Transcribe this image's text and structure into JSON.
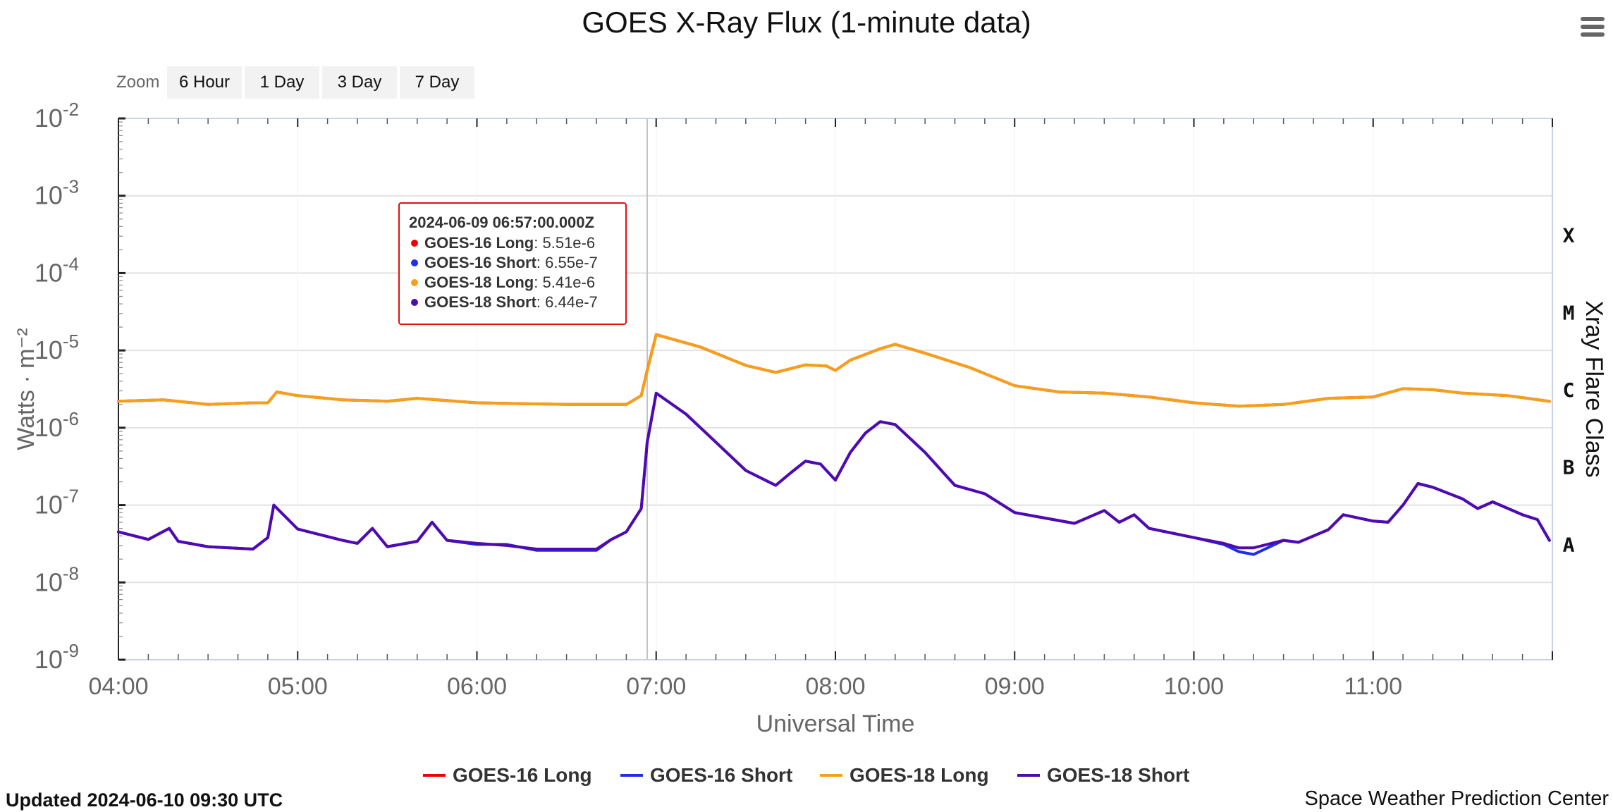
{
  "menu_icon": "hamburger-menu-icon",
  "zoom": {
    "label": "Zoom",
    "buttons": [
      "6 Hour",
      "1 Day",
      "3 Day",
      "7 Day"
    ]
  },
  "footer": {
    "updated": "Updated 2024-06-10 09:30 UTC",
    "credit": "Space Weather Prediction Center"
  },
  "tooltip": {
    "title": "2024-06-09 06:57:00.000Z",
    "rows": [
      {
        "name": "GOES-16 Long",
        "value": "5.51e-6",
        "color": "#ee0000"
      },
      {
        "name": "GOES-16 Short",
        "value": "6.55e-7",
        "color": "#1f2ee8"
      },
      {
        "name": "GOES-18 Long",
        "value": "5.41e-6",
        "color": "#f5a01a"
      },
      {
        "name": "GOES-18 Short",
        "value": "6.44e-7",
        "color": "#4f0ab0"
      }
    ]
  },
  "chart_data": {
    "type": "line",
    "title": "GOES X-Ray Flux (1-minute data)",
    "xlabel": "Universal Time",
    "ylabel": "Watts · m⁻²",
    "y2label": "Xray Flare Class",
    "y_scale": "log",
    "ylim": [
      1e-09,
      0.01
    ],
    "xlim": [
      "04:00",
      "12:00"
    ],
    "x_ticks": [
      "04:00",
      "05:00",
      "06:00",
      "07:00",
      "08:00",
      "09:00",
      "10:00",
      "11:00"
    ],
    "y_ticks": [
      {
        "base": "10",
        "exp": "-2",
        "value": 0.01
      },
      {
        "base": "10",
        "exp": "-3",
        "value": 0.001
      },
      {
        "base": "10",
        "exp": "-4",
        "value": 0.0001
      },
      {
        "base": "10",
        "exp": "-5",
        "value": 1e-05
      },
      {
        "base": "10",
        "exp": "-6",
        "value": 1e-06
      },
      {
        "base": "10",
        "exp": "-7",
        "value": 1e-07
      },
      {
        "base": "10",
        "exp": "-8",
        "value": 1e-08
      },
      {
        "base": "10",
        "exp": "-9",
        "value": 1e-09
      }
    ],
    "flare_classes": [
      {
        "label": "X",
        "value": 0.000316
      },
      {
        "label": "M",
        "value": 3.16e-05
      },
      {
        "label": "C",
        "value": 3.16e-06
      },
      {
        "label": "B",
        "value": 3.16e-07
      },
      {
        "label": "A",
        "value": 3.16e-08
      }
    ],
    "crosshair_x": "06:57",
    "grid": true,
    "legend_position": "bottom-center",
    "series": [
      {
        "name": "GOES-16 Long",
        "color": "#ee0000",
        "x": [
          "04:00",
          "04:15",
          "04:30",
          "04:45",
          "04:50",
          "04:53",
          "05:00",
          "05:15",
          "05:30",
          "05:40",
          "06:00",
          "06:30",
          "06:50",
          "06:55",
          "06:57",
          "07:00",
          "07:15",
          "07:30",
          "07:40",
          "07:50",
          "07:57",
          "08:00",
          "08:05",
          "08:15",
          "08:20",
          "08:30",
          "08:45",
          "09:00",
          "09:15",
          "09:30",
          "09:45",
          "10:00",
          "10:15",
          "10:30",
          "10:45",
          "11:00",
          "11:10",
          "11:20",
          "11:30",
          "11:45",
          "11:59"
        ],
        "y": [
          2.2e-06,
          2.3e-06,
          2e-06,
          2.1e-06,
          2.1e-06,
          2.9e-06,
          2.6e-06,
          2.3e-06,
          2.2e-06,
          2.4e-06,
          2.1e-06,
          2e-06,
          2e-06,
          2.6e-06,
          5.5e-06,
          1.6e-05,
          1.1e-05,
          6.4e-06,
          5.2e-06,
          6.5e-06,
          6.3e-06,
          5.5e-06,
          7.5e-06,
          1.05e-05,
          1.2e-05,
          9.2e-06,
          6e-06,
          3.5e-06,
          2.9e-06,
          2.8e-06,
          2.5e-06,
          2.1e-06,
          1.9e-06,
          2e-06,
          2.4e-06,
          2.5e-06,
          3.2e-06,
          3.1e-06,
          2.8e-06,
          2.6e-06,
          2.2e-06
        ]
      },
      {
        "name": "GOES-16 Short",
        "color": "#1f2ee8",
        "x": [
          "04:00",
          "04:10",
          "04:17",
          "04:20",
          "04:30",
          "04:45",
          "04:50",
          "04:52",
          "05:00",
          "05:15",
          "05:20",
          "05:25",
          "05:30",
          "05:40",
          "05:45",
          "05:50",
          "06:00",
          "06:10",
          "06:20",
          "06:30",
          "06:40",
          "06:45",
          "06:50",
          "06:55",
          "06:57",
          "07:00",
          "07:10",
          "07:20",
          "07:30",
          "07:40",
          "07:45",
          "07:50",
          "07:55",
          "08:00",
          "08:05",
          "08:10",
          "08:15",
          "08:20",
          "08:30",
          "08:40",
          "08:50",
          "09:00",
          "09:10",
          "09:20",
          "09:30",
          "09:35",
          "09:40",
          "09:45",
          "10:00",
          "10:10",
          "10:15",
          "10:20",
          "10:30",
          "10:35",
          "10:45",
          "10:50",
          "11:00",
          "11:05",
          "11:10",
          "11:15",
          "11:20",
          "11:30",
          "11:35",
          "11:40",
          "11:50",
          "11:55",
          "11:59"
        ],
        "y": [
          4.5e-08,
          3.6e-08,
          5e-08,
          3.4e-08,
          2.9e-08,
          2.7e-08,
          3.8e-08,
          1e-07,
          4.9e-08,
          3.5e-08,
          3.2e-08,
          5e-08,
          2.9e-08,
          3.4e-08,
          6e-08,
          3.5e-08,
          3.1e-08,
          3.1e-08,
          2.6e-08,
          2.6e-08,
          2.6e-08,
          3.6e-08,
          4.5e-08,
          9e-08,
          6.5e-07,
          2.8e-06,
          1.5e-06,
          6.5e-07,
          2.8e-07,
          1.8e-07,
          2.6e-07,
          3.7e-07,
          3.4e-07,
          2.1e-07,
          4.8e-07,
          8.5e-07,
          1.2e-06,
          1.1e-06,
          4.8e-07,
          1.8e-07,
          1.4e-07,
          8e-08,
          6.8e-08,
          5.8e-08,
          8.5e-08,
          6e-08,
          7.5e-08,
          5e-08,
          3.8e-08,
          3.1e-08,
          2.5e-08,
          2.3e-08,
          3.5e-08,
          3.3e-08,
          4.8e-08,
          7.5e-08,
          6.2e-08,
          6e-08,
          1e-07,
          1.9e-07,
          1.7e-07,
          1.2e-07,
          9e-08,
          1.1e-07,
          7.5e-08,
          6.5e-08,
          3.5e-08
        ]
      },
      {
        "name": "GOES-18 Long",
        "color": "#f5a01a",
        "x": [
          "04:00",
          "04:15",
          "04:30",
          "04:45",
          "04:50",
          "04:53",
          "05:00",
          "05:15",
          "05:30",
          "05:40",
          "06:00",
          "06:30",
          "06:50",
          "06:55",
          "06:57",
          "07:00",
          "07:15",
          "07:30",
          "07:40",
          "07:50",
          "07:57",
          "08:00",
          "08:05",
          "08:15",
          "08:20",
          "08:30",
          "08:45",
          "09:00",
          "09:15",
          "09:30",
          "09:45",
          "10:00",
          "10:15",
          "10:30",
          "10:45",
          "11:00",
          "11:10",
          "11:20",
          "11:30",
          "11:45",
          "11:59"
        ],
        "y": [
          2.2e-06,
          2.3e-06,
          2e-06,
          2.1e-06,
          2.1e-06,
          2.9e-06,
          2.6e-06,
          2.3e-06,
          2.2e-06,
          2.4e-06,
          2.1e-06,
          2e-06,
          2e-06,
          2.6e-06,
          5.4e-06,
          1.6e-05,
          1.1e-05,
          6.4e-06,
          5.2e-06,
          6.5e-06,
          6.3e-06,
          5.5e-06,
          7.5e-06,
          1.05e-05,
          1.2e-05,
          9.2e-06,
          6e-06,
          3.5e-06,
          2.9e-06,
          2.8e-06,
          2.5e-06,
          2.1e-06,
          1.9e-06,
          2e-06,
          2.4e-06,
          2.5e-06,
          3.2e-06,
          3.1e-06,
          2.8e-06,
          2.6e-06,
          2.2e-06
        ]
      },
      {
        "name": "GOES-18 Short",
        "color": "#4f0ab0",
        "x": [
          "04:00",
          "04:10",
          "04:17",
          "04:20",
          "04:30",
          "04:45",
          "04:50",
          "04:52",
          "05:00",
          "05:15",
          "05:20",
          "05:25",
          "05:30",
          "05:40",
          "05:45",
          "05:50",
          "06:00",
          "06:10",
          "06:20",
          "06:30",
          "06:40",
          "06:45",
          "06:50",
          "06:55",
          "06:57",
          "07:00",
          "07:10",
          "07:20",
          "07:30",
          "07:40",
          "07:45",
          "07:50",
          "07:55",
          "08:00",
          "08:05",
          "08:10",
          "08:15",
          "08:20",
          "08:30",
          "08:40",
          "08:50",
          "09:00",
          "09:10",
          "09:20",
          "09:30",
          "09:35",
          "09:40",
          "09:45",
          "10:00",
          "10:10",
          "10:15",
          "10:20",
          "10:30",
          "10:35",
          "10:45",
          "10:50",
          "11:00",
          "11:05",
          "11:10",
          "11:15",
          "11:20",
          "11:30",
          "11:35",
          "11:40",
          "11:50",
          "11:55",
          "11:59"
        ],
        "y": [
          4.5e-08,
          3.6e-08,
          5e-08,
          3.4e-08,
          2.9e-08,
          2.7e-08,
          3.8e-08,
          1e-07,
          4.9e-08,
          3.5e-08,
          3.2e-08,
          5e-08,
          2.9e-08,
          3.4e-08,
          6e-08,
          3.5e-08,
          3.2e-08,
          3e-08,
          2.7e-08,
          2.7e-08,
          2.7e-08,
          3.6e-08,
          4.5e-08,
          9e-08,
          6.4e-07,
          2.8e-06,
          1.5e-06,
          6.5e-07,
          2.8e-07,
          1.8e-07,
          2.6e-07,
          3.7e-07,
          3.4e-07,
          2.1e-07,
          4.8e-07,
          8.5e-07,
          1.2e-06,
          1.1e-06,
          4.8e-07,
          1.8e-07,
          1.4e-07,
          8e-08,
          6.8e-08,
          5.8e-08,
          8.5e-08,
          6e-08,
          7.5e-08,
          5e-08,
          3.8e-08,
          3.2e-08,
          2.8e-08,
          2.8e-08,
          3.5e-08,
          3.3e-08,
          4.8e-08,
          7.5e-08,
          6.2e-08,
          6e-08,
          1e-07,
          1.9e-07,
          1.7e-07,
          1.2e-07,
          9e-08,
          1.1e-07,
          7.5e-08,
          6.5e-08,
          3.5e-08
        ]
      }
    ]
  }
}
